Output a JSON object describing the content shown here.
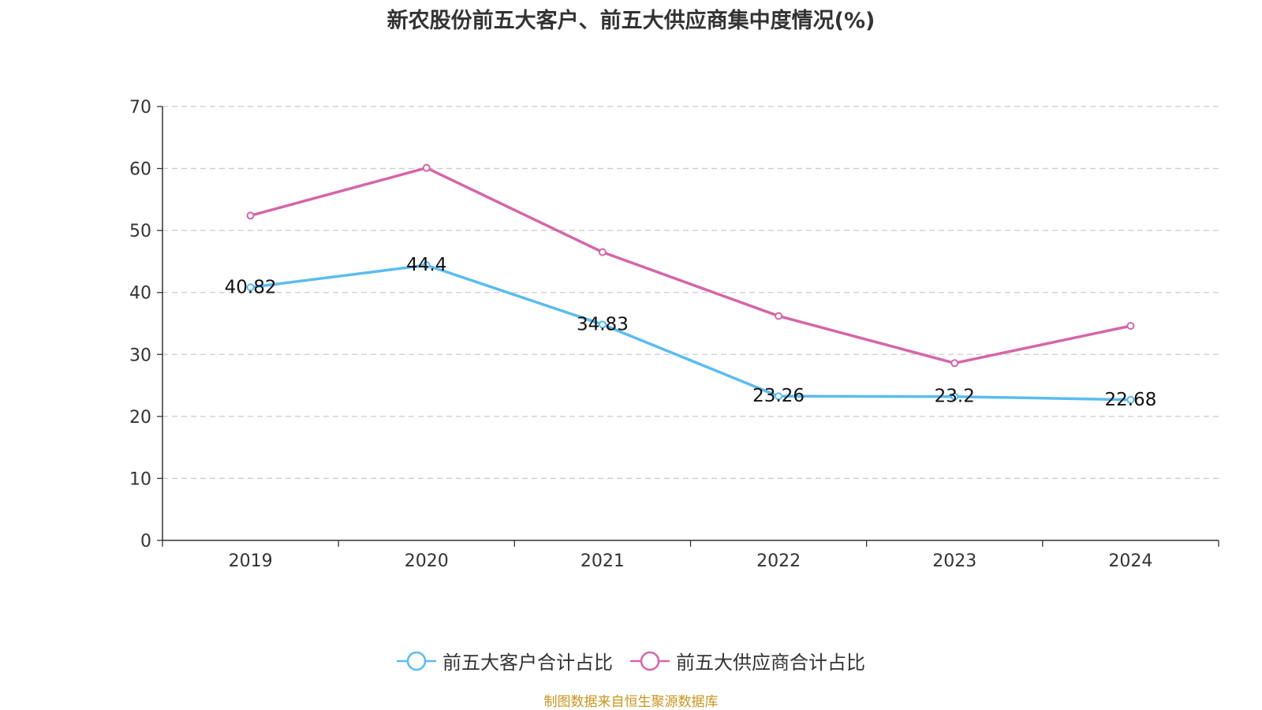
{
  "title": "新农股份前五大客户、前五大供应商集中度情况(%)",
  "source_note": "制图数据来自恒生聚源数据库",
  "chart_data": {
    "type": "line",
    "title": "新农股份前五大客户、前五大供应商集中度情况(%)",
    "categories": [
      "2019",
      "2020",
      "2021",
      "2022",
      "2023",
      "2024"
    ],
    "series": [
      {
        "name": "前五大客户合计占比",
        "color": "#5bbcf0",
        "values": [
          40.82,
          44.4,
          34.83,
          23.26,
          23.2,
          22.68
        ],
        "labels": [
          "40.82",
          "44.4",
          "34.83",
          "23.26",
          "23.2",
          "22.68"
        ],
        "show_labels": true
      },
      {
        "name": "前五大供应商合计占比",
        "color": "#d466a8",
        "values": [
          52.4,
          60.1,
          46.5,
          36.2,
          28.6,
          34.6
        ],
        "show_labels": false
      }
    ],
    "y_ticks": [
      "0",
      "10",
      "20",
      "30",
      "40",
      "50",
      "60",
      "70"
    ],
    "ylim": [
      0,
      70
    ],
    "grid": true,
    "legend_position": "bottom"
  }
}
